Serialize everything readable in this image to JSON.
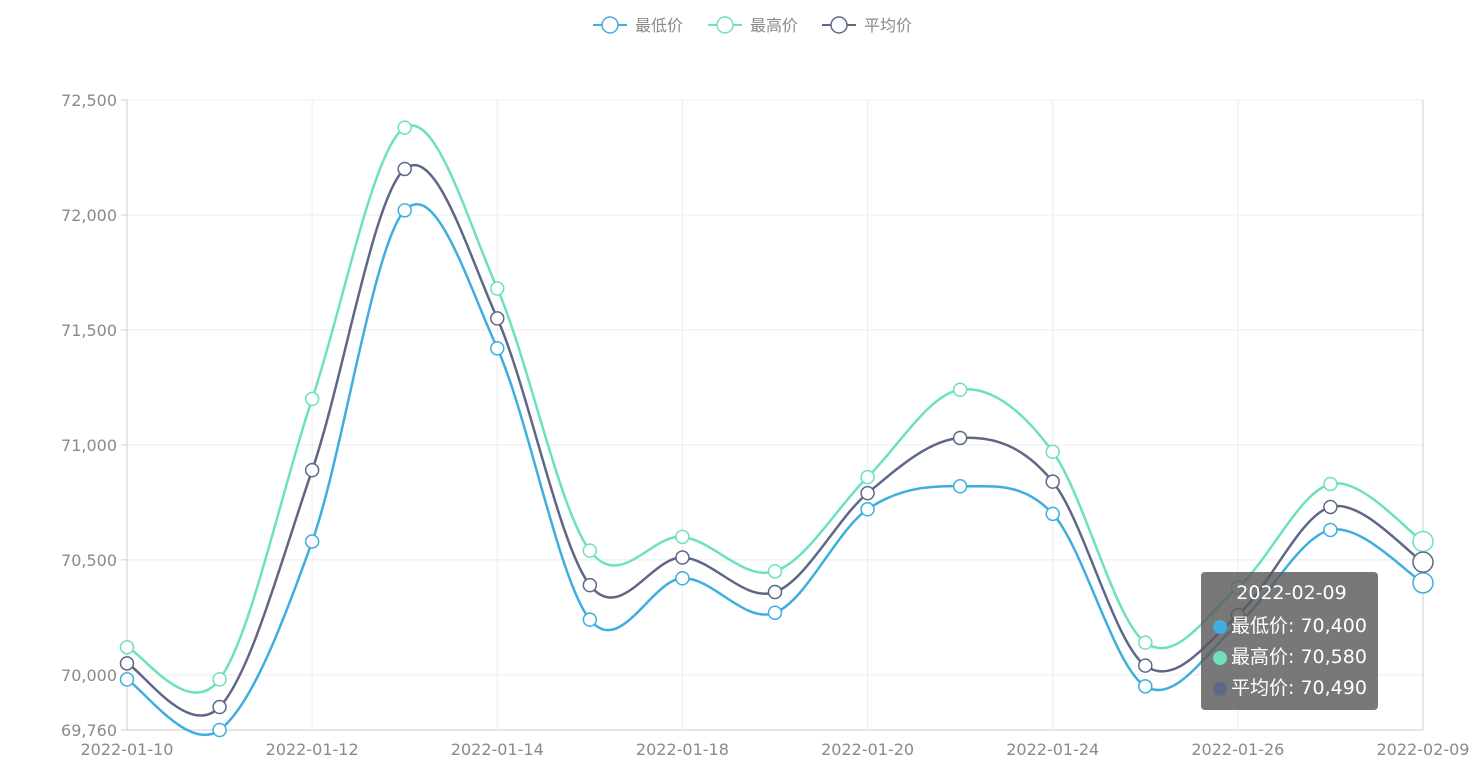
{
  "chart_data": {
    "type": "line",
    "smooth": true,
    "categories": [
      "2022-01-10",
      "2022-01-11",
      "2022-01-12",
      "2022-01-13",
      "2022-01-14",
      "2022-01-16",
      "2022-01-18",
      "2022-01-19",
      "2022-01-20",
      "2022-01-21",
      "2022-01-24",
      "2022-01-25",
      "2022-01-26",
      "2022-01-27",
      "2022-02-09"
    ],
    "x_tick_labels": [
      "2022-01-10",
      "2022-01-12",
      "2022-01-14",
      "2022-01-18",
      "2022-01-20",
      "2022-01-24",
      "2022-01-26",
      "2022-02-09"
    ],
    "series": [
      {
        "name": "最低价",
        "color": "#3eaedf",
        "values": [
          69980,
          69760,
          70580,
          72020,
          71420,
          70240,
          70420,
          70270,
          70720,
          70820,
          70700,
          69950,
          70220,
          70630,
          70400
        ]
      },
      {
        "name": "最高价",
        "color": "#6de0c0",
        "values": [
          70120,
          69980,
          71200,
          72380,
          71680,
          70540,
          70600,
          70450,
          70860,
          71240,
          70970,
          70140,
          70380,
          70830,
          70580
        ]
      },
      {
        "name": "平均价",
        "color": "#5f6789",
        "values": [
          70050,
          69860,
          70890,
          72200,
          71550,
          70390,
          70510,
          70360,
          70790,
          71030,
          70840,
          70040,
          70260,
          70730,
          70490
        ]
      }
    ],
    "y_ticks": [
      69760,
      70000,
      70500,
      71000,
      71500,
      72000,
      72500
    ],
    "y_tick_labels": [
      "69,760",
      "70,000",
      "70,500",
      "71,000",
      "71,500",
      "72,000",
      "72,500"
    ],
    "ylim": [
      69760,
      72500
    ],
    "grid": true,
    "legend_position": "top-center"
  },
  "tooltip": {
    "title": "2022-02-09",
    "rows": [
      {
        "label": "最低价: 70,400",
        "color": "#3eaedf"
      },
      {
        "label": "最高价: 70,580",
        "color": "#6de0c0"
      },
      {
        "label": "平均价: 70,490",
        "color": "#5f6789"
      }
    ]
  }
}
